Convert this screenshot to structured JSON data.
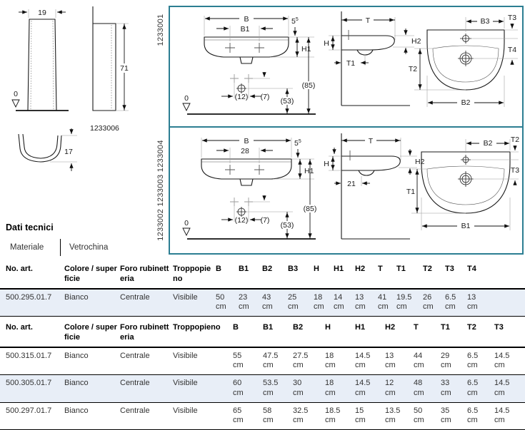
{
  "pedestal": {
    "front_width": "19",
    "zero": "0",
    "side_height": "71",
    "article": "1233006",
    "section_depth": "17"
  },
  "panel1": {
    "article": "1233001",
    "front": {
      "b": "B",
      "b1": "B1",
      "five": "5",
      "five_sup": "5",
      "h1": "H1",
      "d12": "(12)",
      "d7": "(7)",
      "d53": "(53)",
      "d85": "(85)",
      "zero": "0"
    },
    "side": {
      "t": "T",
      "h": "H",
      "h2": "H2",
      "t1": "T1"
    },
    "top": {
      "b3": "B3",
      "t3": "T3",
      "t4": "T4",
      "t2": "T2",
      "b2": "B2"
    }
  },
  "panel2": {
    "articles": "1233002 1233003 1233004",
    "front": {
      "b": "B",
      "b1": "28",
      "five": "5",
      "five_sup": "5",
      "h1": "H1",
      "d12": "(12)",
      "d7": "(7)",
      "d53": "(53)",
      "d85": "(85)",
      "zero": "0"
    },
    "side": {
      "t": "T",
      "h": "H",
      "h2": "H2",
      "t1": "21"
    },
    "top": {
      "b2": "B2",
      "t2": "T2",
      "t3": "T3",
      "t1": "T1",
      "b1": "B1"
    }
  },
  "tech": {
    "title": "Dati tecnici",
    "material_label": "Materiale",
    "material_value": "Vetrochina"
  },
  "table1": {
    "headers": [
      "No. art.",
      "Colore / superficie",
      "Foro rubinetteria",
      "Troppopieno",
      "B",
      "B1",
      "B2",
      "B3",
      "H",
      "H1",
      "H2",
      "T",
      "T1",
      "T2",
      "T3",
      "T4"
    ],
    "rows": [
      [
        "500.295.01.7",
        "Bianco",
        "Centrale",
        "Visibile",
        "50 cm",
        "23 cm",
        "43 cm",
        "25 cm",
        "18 cm",
        "14 cm",
        "13 cm",
        "41 cm",
        "19.5 cm",
        "26 cm",
        "6.5 cm",
        "13 cm"
      ]
    ]
  },
  "table2": {
    "headers": [
      "No. art.",
      "Colore / superficie",
      "Foro rubinetteria",
      "Troppopieno",
      "B",
      "B1",
      "B2",
      "H",
      "H1",
      "H2",
      "T",
      "T1",
      "T2",
      "T3"
    ],
    "rows": [
      [
        "500.315.01.7",
        "Bianco",
        "Centrale",
        "Visibile",
        "55 cm",
        "47.5 cm",
        "27.5 cm",
        "18 cm",
        "14.5 cm",
        "13 cm",
        "44 cm",
        "29 cm",
        "6.5 cm",
        "14.5 cm"
      ],
      [
        "500.305.01.7",
        "Bianco",
        "Centrale",
        "Visibile",
        "60 cm",
        "53.5 cm",
        "30 cm",
        "18 cm",
        "14.5 cm",
        "12 cm",
        "48 cm",
        "33 cm",
        "6.5 cm",
        "14.5 cm"
      ],
      [
        "500.297.01.7",
        "Bianco",
        "Centrale",
        "Visibile",
        "65 cm",
        "58 cm",
        "32.5 cm",
        "18.5 cm",
        "15 cm",
        "13.5 cm",
        "50 cm",
        "35 cm",
        "6.5 cm",
        "14.5 cm"
      ]
    ]
  }
}
